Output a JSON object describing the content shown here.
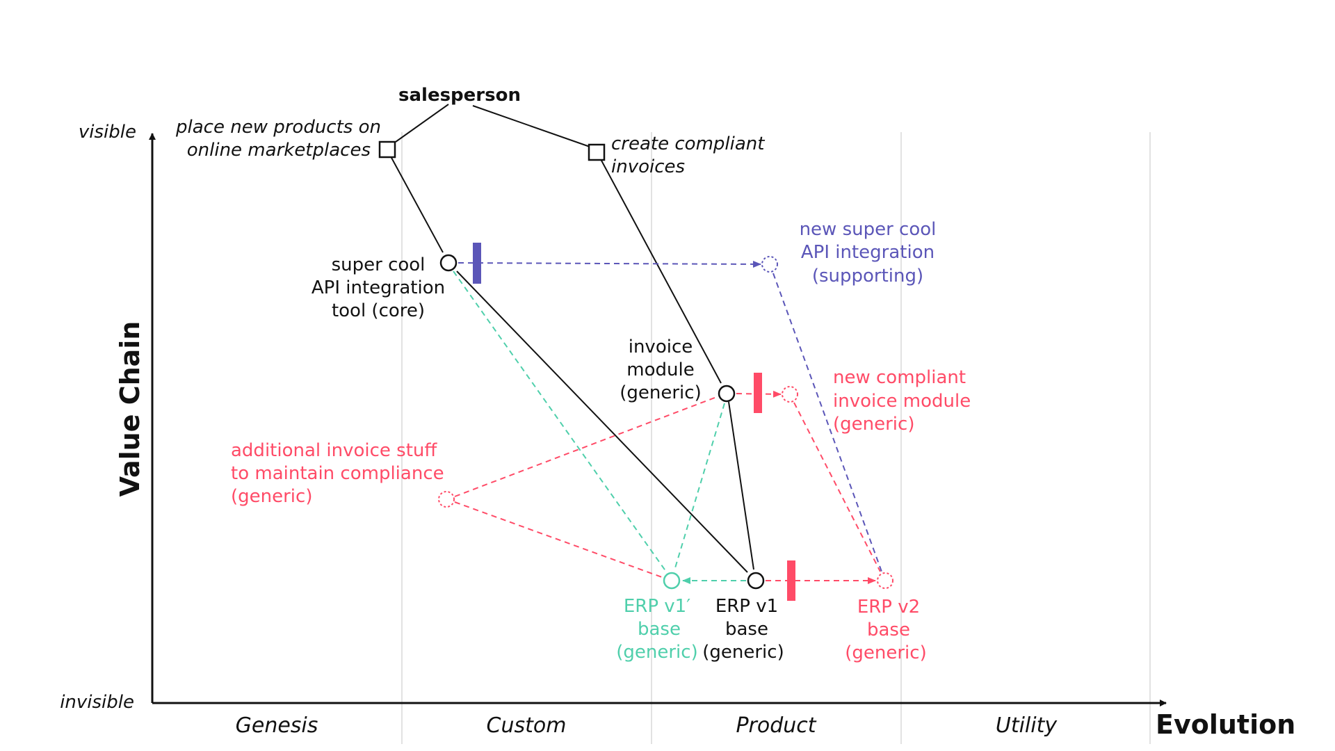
{
  "colors": {
    "black": "#111111",
    "purple": "#5b56b8",
    "red": "#ff4b67",
    "green": "#4fcfab",
    "grid": "#e2e2e2"
  },
  "axes": {
    "y_title": "Value Chain",
    "y_top": "visible",
    "y_bottom": "invisible",
    "x_title": "Evolution",
    "x_stages": [
      "Genesis",
      "Custom",
      "Product",
      "Utility"
    ]
  },
  "user": {
    "name": "salesperson"
  },
  "needs": [
    {
      "lines": [
        "place new products on",
        "online marketplaces"
      ]
    },
    {
      "lines": [
        "create compliant",
        "invoices"
      ]
    }
  ],
  "components": {
    "api_tool": {
      "lines": [
        "super cool",
        "API integration",
        "tool (core)"
      ]
    },
    "api_new": {
      "lines": [
        "new super cool",
        "API integration",
        "(supporting)"
      ]
    },
    "invoice": {
      "lines": [
        "invoice",
        "module",
        "(generic)"
      ]
    },
    "invoice_new": {
      "lines": [
        "new compliant",
        "invoice module",
        "(generic)"
      ]
    },
    "additional": {
      "lines": [
        "additional invoice stuff",
        "to maintain compliance",
        "(generic)"
      ]
    },
    "erp_v1p": {
      "lines": [
        "ERP v1′",
        "base",
        "(generic)"
      ]
    },
    "erp_v1": {
      "lines": [
        "ERP v1",
        "base",
        "(generic)"
      ]
    },
    "erp_v2": {
      "lines": [
        "ERP v2",
        "base",
        "(generic)"
      ]
    }
  }
}
